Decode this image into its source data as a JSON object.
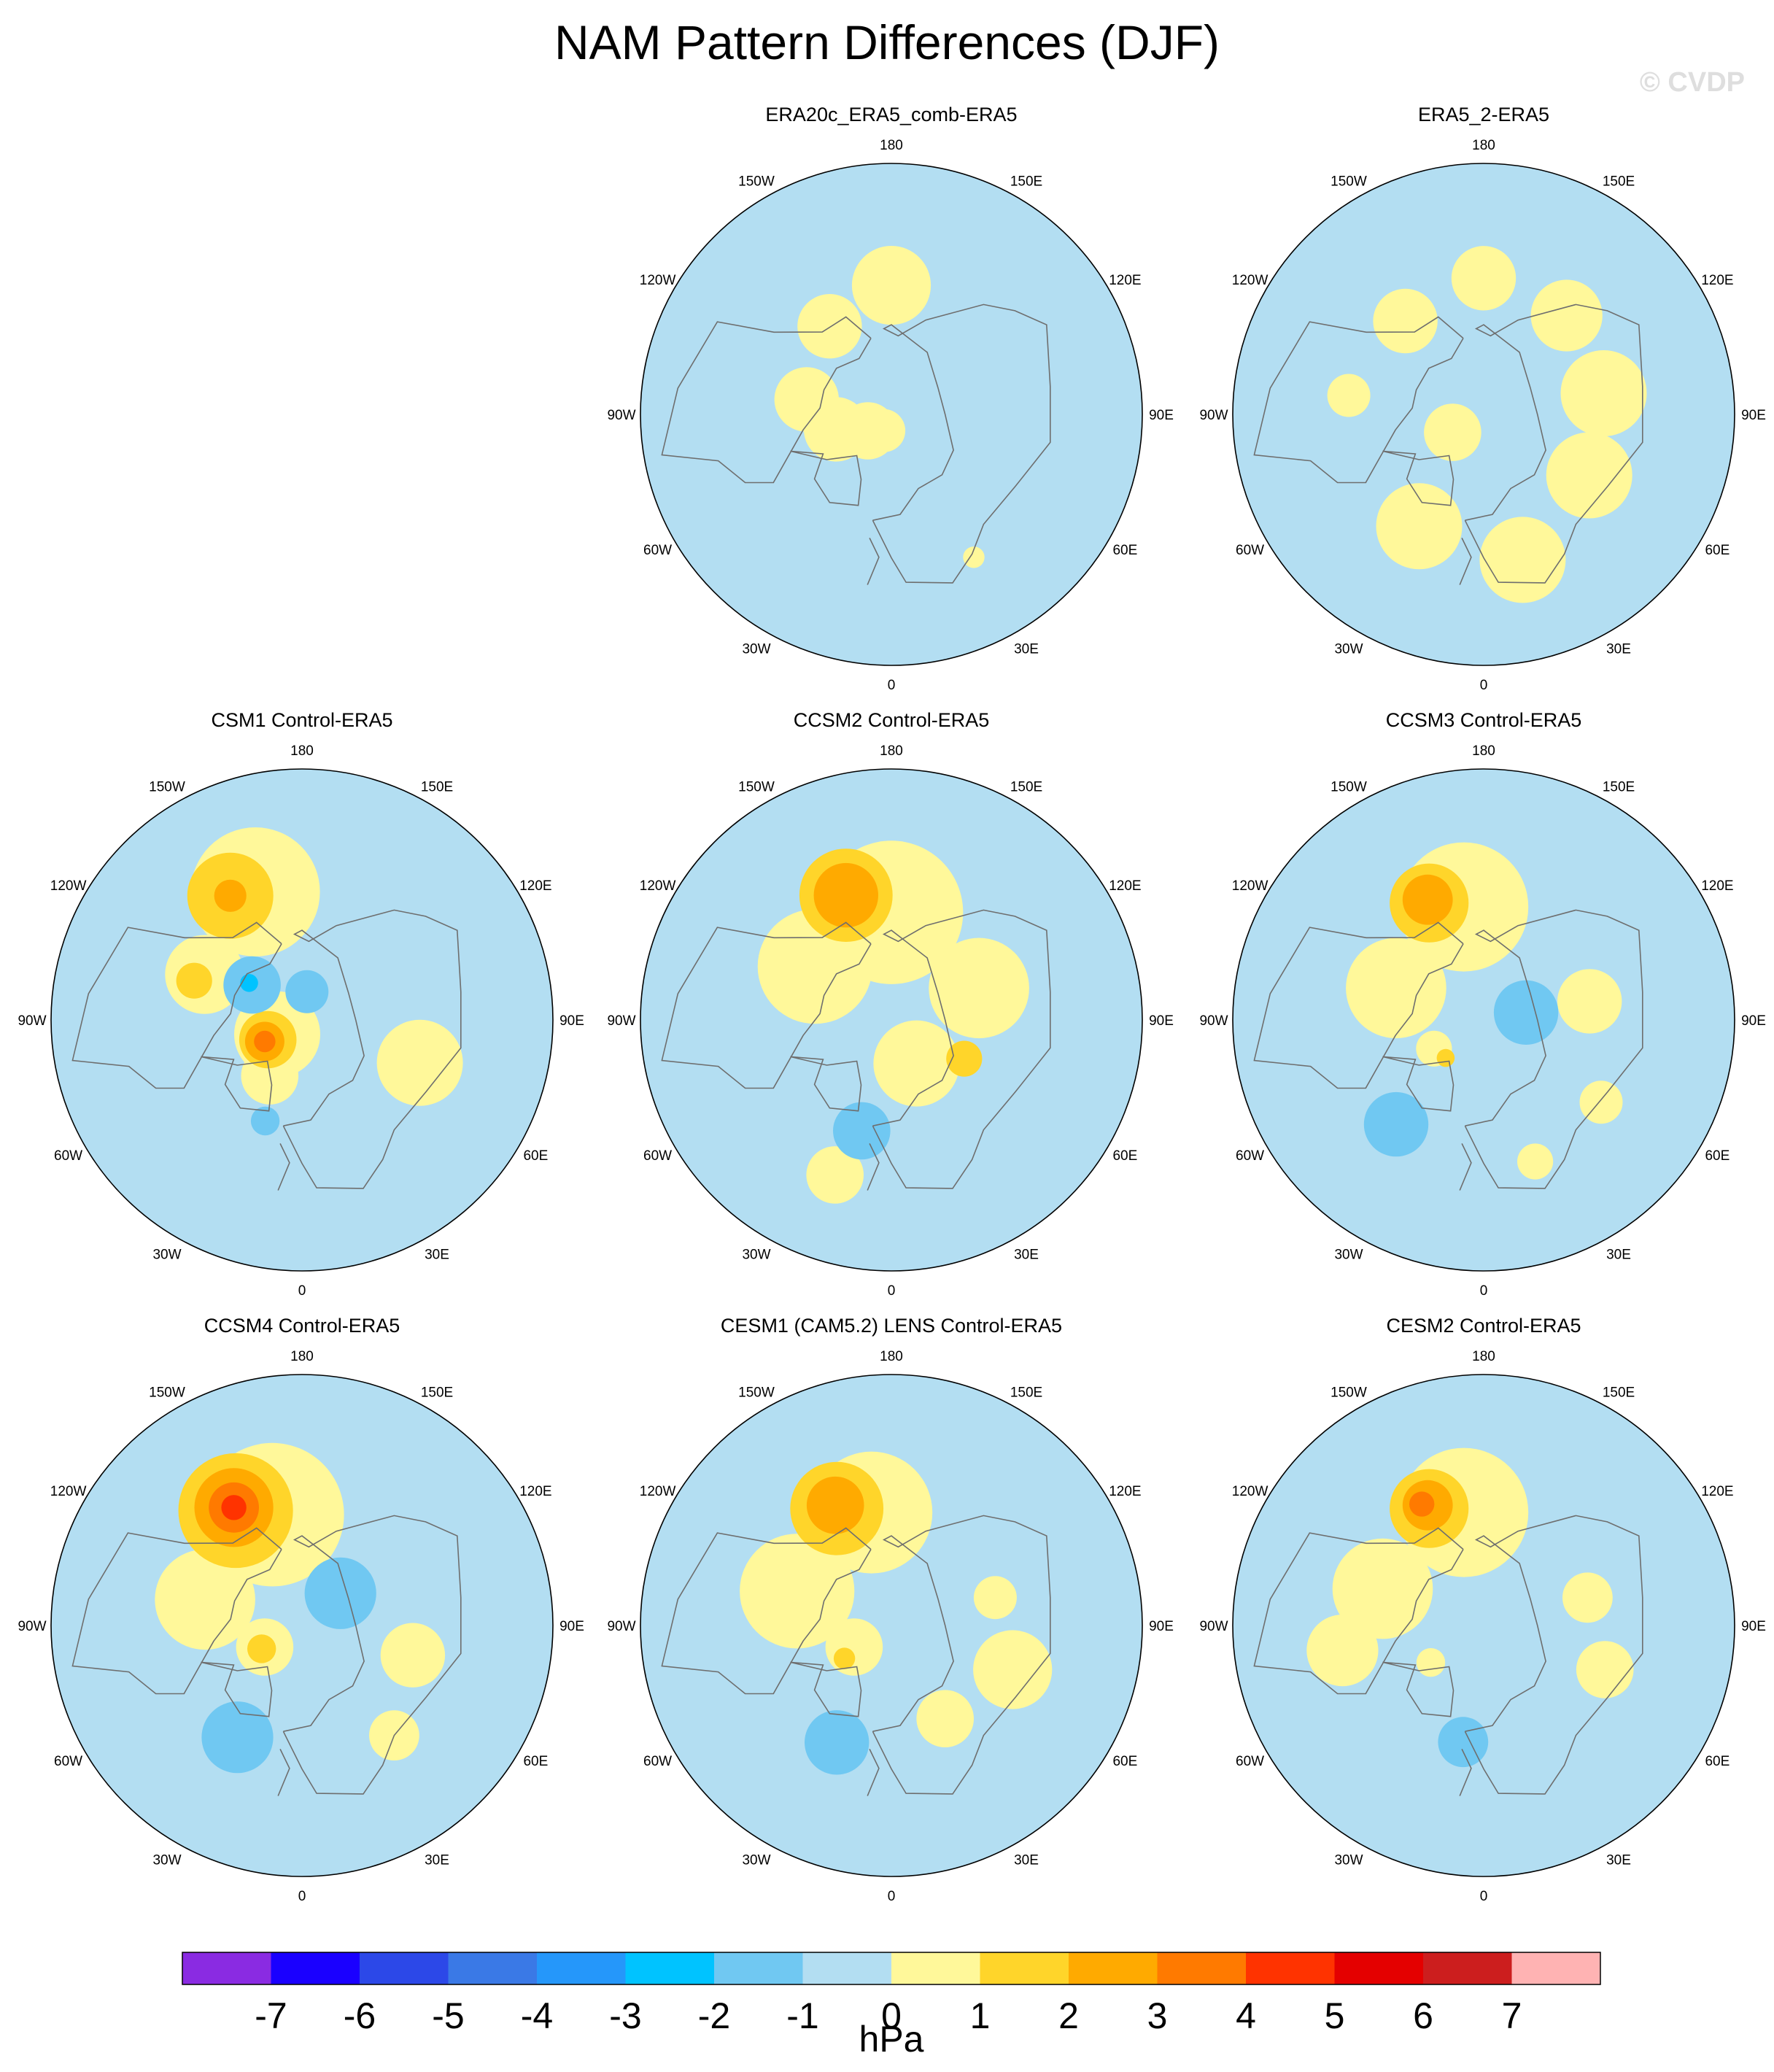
{
  "title": "NAM Pattern Differences (DJF)",
  "watermark": "© CVDP",
  "lon_labels": [
    "180",
    "150E",
    "120E",
    "90E",
    "60E",
    "30E",
    "0",
    "30W",
    "60W",
    "90W",
    "120W",
    "150W"
  ],
  "chart_data": {
    "type": "heatmap",
    "title": "NAM Pattern Differences (DJF)",
    "projection": "north-polar-stereographic",
    "season": "DJF",
    "units": "hPa",
    "colorbar": {
      "levels": [
        -7,
        -6,
        -5,
        -4,
        -3,
        -2,
        -1,
        0,
        1,
        2,
        3,
        4,
        5,
        6,
        7
      ],
      "colors": [
        "#8a2be2",
        "#1a00ff",
        "#2c48e8",
        "#3a79e6",
        "#2597fa",
        "#00c3ff",
        "#70c8f2",
        "#b3def2",
        "#fff89a",
        "#ffd52a",
        "#ffaa00",
        "#ff7a00",
        "#ff3300",
        "#e40000",
        "#cc1e1e",
        "#ffb3b3"
      ],
      "orientation": "horizontal",
      "placement": "bottom"
    },
    "panels": [
      {
        "name": "ERA20c_ERA5_comb-ERA5",
        "blobs": [
          {
            "lon": 180,
            "colat": 36,
            "r": 11,
            "value": 0.5
          },
          {
            "lon": 215,
            "colat": 30,
            "r": 9,
            "value": 0.5
          },
          {
            "lon": 260,
            "colat": 24,
            "r": 9,
            "value": 0.5
          },
          {
            "lon": 285,
            "colat": 16,
            "r": 9,
            "value": 0.5
          },
          {
            "lon": 305,
            "colat": 8,
            "r": 8,
            "value": 0.5
          },
          {
            "lon": 335,
            "colat": 5,
            "r": 6,
            "value": 0.5
          },
          {
            "lon": 30,
            "colat": 46,
            "r": 3,
            "value": 0.5
          }
        ]
      },
      {
        "name": "ERA5_2-ERA5",
        "blobs": [
          {
            "lon": 180,
            "colat": 38,
            "r": 9,
            "value": 0.5
          },
          {
            "lon": 220,
            "colat": 34,
            "r": 9,
            "value": 0.5
          },
          {
            "lon": 330,
            "colat": 36,
            "r": 12,
            "value": 0.5
          },
          {
            "lon": 15,
            "colat": 42,
            "r": 12,
            "value": 0.5
          },
          {
            "lon": 60,
            "colat": 34,
            "r": 12,
            "value": 0.5
          },
          {
            "lon": 100,
            "colat": 34,
            "r": 12,
            "value": 0.5
          },
          {
            "lon": 140,
            "colat": 36,
            "r": 10,
            "value": 0.5
          },
          {
            "lon": 300,
            "colat": 10,
            "r": 8,
            "value": 0.5
          },
          {
            "lon": 262,
            "colat": 38,
            "r": 6,
            "value": 0.5
          }
        ]
      },
      {
        "name": "CSM1 Control-ERA5",
        "blobs": [
          {
            "lon": 200,
            "colat": 38,
            "r": 18,
            "value": 0.5
          },
          {
            "lon": 245,
            "colat": 30,
            "r": 11,
            "value": 0.5
          },
          {
            "lon": 300,
            "colat": 8,
            "r": 12,
            "value": 0.5
          },
          {
            "lon": 70,
            "colat": 35,
            "r": 12,
            "value": 0.5
          },
          {
            "lon": 330,
            "colat": 18,
            "r": 8,
            "value": 0.5
          },
          {
            "lon": 210,
            "colat": 40,
            "r": 12,
            "value": 1.5
          },
          {
            "lon": 250,
            "colat": 32,
            "r": 5,
            "value": 1.5
          },
          {
            "lon": 210,
            "colat": 40,
            "r": 4.5,
            "value": 2.5
          },
          {
            "lon": 300,
            "colat": 11,
            "r": 8,
            "value": 1.5
          },
          {
            "lon": 300,
            "colat": 12,
            "r": 5.5,
            "value": 2.5
          },
          {
            "lon": 300,
            "colat": 12,
            "r": 3,
            "value": 3.5
          },
          {
            "lon": 235,
            "colat": 17,
            "r": 8,
            "value": -1.5
          },
          {
            "lon": 235,
            "colat": 18,
            "r": 2.5,
            "value": -2.5
          },
          {
            "lon": 170,
            "colat": 8,
            "r": 6,
            "value": -1.5
          },
          {
            "lon": 340,
            "colat": 30,
            "r": 4,
            "value": -1.5
          }
        ]
      },
      {
        "name": "CCSM2 Control-ERA5",
        "blobs": [
          {
            "lon": 180,
            "colat": 30,
            "r": 20,
            "value": 0.5
          },
          {
            "lon": 235,
            "colat": 26,
            "r": 16,
            "value": 0.5
          },
          {
            "lon": 110,
            "colat": 26,
            "r": 14,
            "value": 0.5
          },
          {
            "lon": 30,
            "colat": 14,
            "r": 12,
            "value": 0.5
          },
          {
            "lon": 340,
            "colat": 46,
            "r": 8,
            "value": 0.5
          },
          {
            "lon": 200,
            "colat": 37,
            "r": 13,
            "value": 1.5
          },
          {
            "lon": 200,
            "colat": 37,
            "r": 9,
            "value": 2.5
          },
          {
            "lon": 62,
            "colat": 23,
            "r": 5,
            "value": 1.5
          },
          {
            "lon": 345,
            "colat": 32,
            "r": 8,
            "value": -1.5
          }
        ]
      },
      {
        "name": "CCSM3 Control-ERA5",
        "blobs": [
          {
            "lon": 190,
            "colat": 32,
            "r": 18,
            "value": 0.5
          },
          {
            "lon": 250,
            "colat": 26,
            "r": 14,
            "value": 0.5
          },
          {
            "lon": 100,
            "colat": 30,
            "r": 9,
            "value": 0.5
          },
          {
            "lon": 55,
            "colat": 40,
            "r": 6,
            "value": 0.5
          },
          {
            "lon": 20,
            "colat": 42,
            "r": 5,
            "value": 0.5
          },
          {
            "lon": 300,
            "colat": 16,
            "r": 5,
            "value": 0.5
          },
          {
            "lon": 205,
            "colat": 36,
            "r": 11,
            "value": 1.5
          },
          {
            "lon": 205,
            "colat": 37,
            "r": 7,
            "value": 2.5
          },
          {
            "lon": 315,
            "colat": 15,
            "r": 2.5,
            "value": 1.5
          },
          {
            "lon": 100,
            "colat": 12,
            "r": 9,
            "value": -1.5
          },
          {
            "lon": 320,
            "colat": 38,
            "r": 9,
            "value": -1.5
          }
        ]
      },
      {
        "name": "CCSM4 Control-ERA5",
        "blobs": [
          {
            "lon": 195,
            "colat": 32,
            "r": 20,
            "value": 0.5
          },
          {
            "lon": 255,
            "colat": 28,
            "r": 14,
            "value": 0.5
          },
          {
            "lon": 300,
            "colat": 12,
            "r": 8,
            "value": 0.5
          },
          {
            "lon": 75,
            "colat": 32,
            "r": 9,
            "value": 0.5
          },
          {
            "lon": 40,
            "colat": 40,
            "r": 7,
            "value": 0.5
          },
          {
            "lon": 210,
            "colat": 37,
            "r": 16,
            "value": 1.5
          },
          {
            "lon": 210,
            "colat": 38,
            "r": 11,
            "value": 2.5
          },
          {
            "lon": 210,
            "colat": 38,
            "r": 7,
            "value": 3.5
          },
          {
            "lon": 210,
            "colat": 38,
            "r": 3.5,
            "value": 4.5
          },
          {
            "lon": 300,
            "colat": 13,
            "r": 4,
            "value": 1.5
          },
          {
            "lon": 130,
            "colat": 14,
            "r": 10,
            "value": -1.5
          },
          {
            "lon": 330,
            "colat": 36,
            "r": 10,
            "value": -1.5
          }
        ]
      },
      {
        "name": "CESM1 (CAM5.2) LENS Control-ERA5",
        "blobs": [
          {
            "lon": 190,
            "colat": 32,
            "r": 17,
            "value": 0.5
          },
          {
            "lon": 250,
            "colat": 28,
            "r": 16,
            "value": 0.5
          },
          {
            "lon": 300,
            "colat": 12,
            "r": 8,
            "value": 0.5
          },
          {
            "lon": 70,
            "colat": 36,
            "r": 11,
            "value": 0.5
          },
          {
            "lon": 30,
            "colat": 30,
            "r": 8,
            "value": 0.5
          },
          {
            "lon": 105,
            "colat": 30,
            "r": 6,
            "value": 0.5
          },
          {
            "lon": 205,
            "colat": 36,
            "r": 13,
            "value": 1.5
          },
          {
            "lon": 205,
            "colat": 37,
            "r": 8,
            "value": 2.5
          },
          {
            "lon": 305,
            "colat": 16,
            "r": 3,
            "value": 1.5
          },
          {
            "lon": 335,
            "colat": 36,
            "r": 9,
            "value": -1.5
          }
        ]
      },
      {
        "name": "CESM2 Control-ERA5",
        "blobs": [
          {
            "lon": 190,
            "colat": 32,
            "r": 18,
            "value": 0.5
          },
          {
            "lon": 250,
            "colat": 30,
            "r": 14,
            "value": 0.5
          },
          {
            "lon": 280,
            "colat": 40,
            "r": 10,
            "value": 0.5
          },
          {
            "lon": 70,
            "colat": 36,
            "r": 8,
            "value": 0.5
          },
          {
            "lon": 105,
            "colat": 30,
            "r": 7,
            "value": 0.5
          },
          {
            "lon": 305,
            "colat": 18,
            "r": 4,
            "value": 0.5
          },
          {
            "lon": 205,
            "colat": 36,
            "r": 11,
            "value": 1.5
          },
          {
            "lon": 205,
            "colat": 37,
            "r": 7,
            "value": 2.5
          },
          {
            "lon": 207,
            "colat": 38,
            "r": 3.5,
            "value": 3.5
          },
          {
            "lon": 350,
            "colat": 33,
            "r": 7,
            "value": -1.5
          }
        ]
      }
    ]
  }
}
